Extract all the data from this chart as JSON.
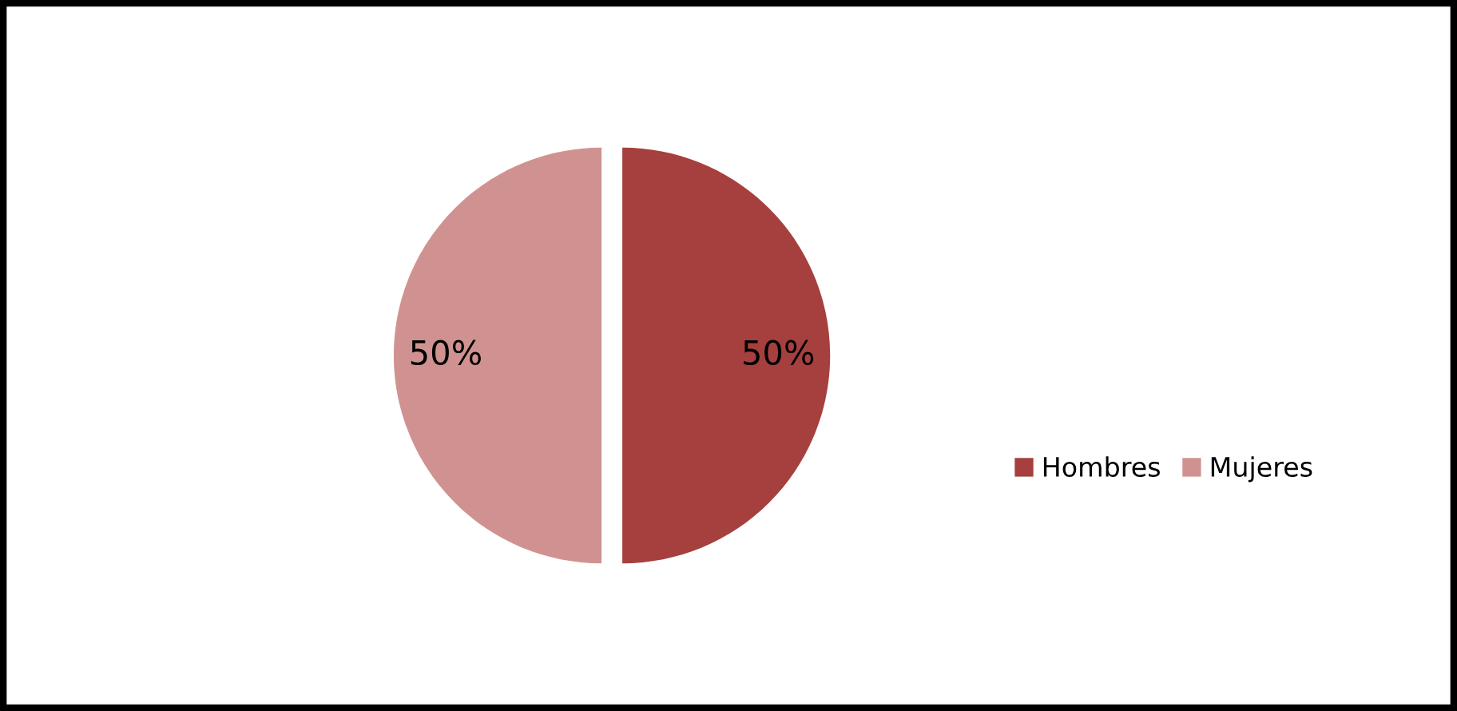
{
  "chart_data": {
    "type": "pie",
    "categories": [
      "Hombres",
      "Mujeres"
    ],
    "values": [
      50,
      50
    ],
    "colors": [
      "#a5403e",
      "#d09290"
    ],
    "value_labels": [
      "50%",
      "50%"
    ],
    "legend": "right"
  }
}
